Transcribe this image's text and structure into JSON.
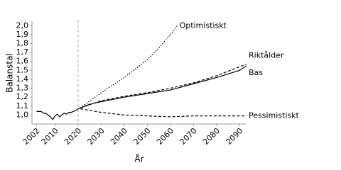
{
  "chart_data": {
    "type": "line",
    "ylabel": "Balanstal",
    "xlabel": "År",
    "xlim": [
      2000,
      2093
    ],
    "ylim": [
      0.9,
      2.05
    ],
    "xticks": [
      2002,
      2010,
      2020,
      2030,
      2040,
      2050,
      2060,
      2070,
      2080,
      2090
    ],
    "yticks": [
      {
        "value": 1.0,
        "label": "1,0"
      },
      {
        "value": 1.1,
        "label": "1,1"
      },
      {
        "value": 1.2,
        "label": "1,2"
      },
      {
        "value": 1.3,
        "label": "1,3"
      },
      {
        "value": 1.4,
        "label": "1,4"
      },
      {
        "value": 1.5,
        "label": "1,5"
      },
      {
        "value": 1.6,
        "label": "1,6"
      },
      {
        "value": 1.7,
        "label": "1,7"
      },
      {
        "value": 1.8,
        "label": "1,8"
      },
      {
        "value": 1.9,
        "label": "1,9"
      },
      {
        "value": 2.0,
        "label": "2,0"
      }
    ],
    "reference_line_x": 2020,
    "grid": false,
    "series": [
      {
        "name": "Optimistiskt",
        "color": "#000000",
        "dash": "dotted",
        "x": [
          2021,
          2030,
          2040,
          2050,
          2055,
          2060,
          2063
        ],
        "values": [
          1.08,
          1.25,
          1.42,
          1.62,
          1.75,
          1.9,
          2.0
        ]
      },
      {
        "name": "Riktålder",
        "color": "#000000",
        "dash": "dashed",
        "x": [
          2021,
          2030,
          2040,
          2050,
          2060,
          2070,
          2080,
          2093
        ],
        "values": [
          1.08,
          1.16,
          1.21,
          1.25,
          1.3,
          1.36,
          1.44,
          1.57
        ]
      },
      {
        "name": "Bas",
        "color": "#000000",
        "dash": "solid",
        "x": [
          2002,
          2004,
          2005,
          2006,
          2007,
          2008,
          2009,
          2010,
          2011,
          2012,
          2013,
          2014,
          2015,
          2016,
          2017,
          2018,
          2019,
          2020,
          2021,
          2025,
          2030,
          2040,
          2050,
          2060,
          2070,
          2080,
          2090,
          2093
        ],
        "values": [
          1.04,
          1.04,
          1.02,
          1.02,
          1.0,
          0.98,
          0.95,
          0.99,
          1.01,
          0.98,
          1.0,
          1.02,
          1.01,
          1.03,
          1.03,
          1.04,
          1.05,
          1.07,
          1.08,
          1.12,
          1.15,
          1.2,
          1.24,
          1.28,
          1.35,
          1.42,
          1.5,
          1.55
        ]
      },
      {
        "name": "Pessimistiskt",
        "color": "#000000",
        "dash": "dashed",
        "x": [
          2021,
          2030,
          2040,
          2050,
          2060,
          2070,
          2080,
          2093
        ],
        "values": [
          1.07,
          1.03,
          1.0,
          0.99,
          0.98,
          0.99,
          0.99,
          0.99
        ]
      }
    ]
  }
}
